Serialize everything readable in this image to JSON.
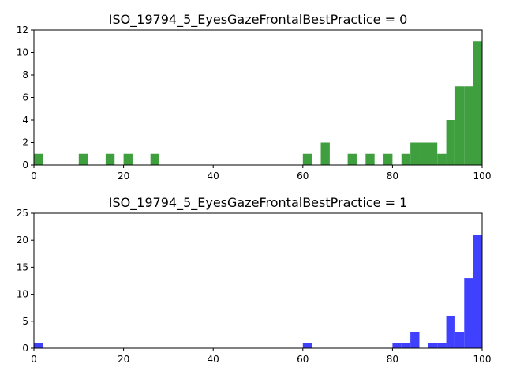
{
  "chart_data": [
    {
      "type": "bar",
      "title": "ISO_19794_5_EyesGazeFrontalBestPractice = 0",
      "xlabel": "",
      "ylabel": "",
      "xlim": [
        0,
        100
      ],
      "ylim": [
        0,
        12
      ],
      "xticks": [
        0,
        20,
        40,
        60,
        80,
        100
      ],
      "yticks": [
        0,
        2,
        4,
        6,
        8,
        10,
        12
      ],
      "grid": false,
      "color": "#3f9f3f",
      "bin_width": 2,
      "bins": [
        {
          "x": 0,
          "count": 1
        },
        {
          "x": 10,
          "count": 1
        },
        {
          "x": 16,
          "count": 1
        },
        {
          "x": 20,
          "count": 1
        },
        {
          "x": 26,
          "count": 1
        },
        {
          "x": 60,
          "count": 1
        },
        {
          "x": 64,
          "count": 2
        },
        {
          "x": 70,
          "count": 1
        },
        {
          "x": 74,
          "count": 1
        },
        {
          "x": 78,
          "count": 1
        },
        {
          "x": 82,
          "count": 1
        },
        {
          "x": 84,
          "count": 2
        },
        {
          "x": 86,
          "count": 2
        },
        {
          "x": 88,
          "count": 2
        },
        {
          "x": 90,
          "count": 1
        },
        {
          "x": 92,
          "count": 4
        },
        {
          "x": 94,
          "count": 7
        },
        {
          "x": 96,
          "count": 7
        },
        {
          "x": 98,
          "count": 11
        }
      ]
    },
    {
      "type": "bar",
      "title": "ISO_19794_5_EyesGazeFrontalBestPractice = 1",
      "xlabel": "",
      "ylabel": "",
      "xlim": [
        0,
        100
      ],
      "ylim": [
        0,
        25
      ],
      "xticks": [
        0,
        20,
        40,
        60,
        80,
        100
      ],
      "yticks": [
        0,
        5,
        10,
        15,
        20,
        25
      ],
      "grid": false,
      "color": "#4040ff",
      "bin_width": 2,
      "bins": [
        {
          "x": 0,
          "count": 1
        },
        {
          "x": 60,
          "count": 1
        },
        {
          "x": 80,
          "count": 1
        },
        {
          "x": 82,
          "count": 1
        },
        {
          "x": 84,
          "count": 3
        },
        {
          "x": 88,
          "count": 1
        },
        {
          "x": 90,
          "count": 1
        },
        {
          "x": 92,
          "count": 6
        },
        {
          "x": 94,
          "count": 3
        },
        {
          "x": 96,
          "count": 13
        },
        {
          "x": 98,
          "count": 21
        }
      ]
    }
  ]
}
